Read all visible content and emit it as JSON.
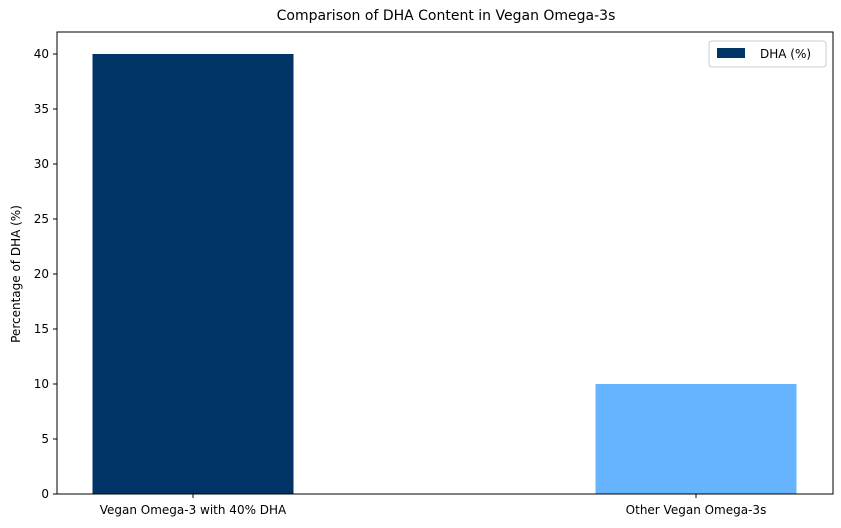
{
  "chart_data": {
    "type": "bar",
    "title": "Comparison of DHA Content in Vegan Omega-3s",
    "xlabel": "",
    "ylabel": "Percentage of DHA (%)",
    "categories": [
      "Vegan Omega-3 with 40% DHA",
      "Other Vegan Omega-3s"
    ],
    "series": [
      {
        "name": "DHA (%)",
        "values": [
          40,
          10
        ],
        "colors": [
          "#003366",
          "#66b3ff"
        ]
      }
    ],
    "ylim": [
      0,
      42
    ],
    "yticks": [
      0,
      5,
      10,
      15,
      20,
      25,
      30,
      35,
      40
    ],
    "grid": false,
    "legend": {
      "position": "top-right",
      "entries": [
        "DHA (%)"
      ],
      "swatch_color": "#003366"
    }
  }
}
